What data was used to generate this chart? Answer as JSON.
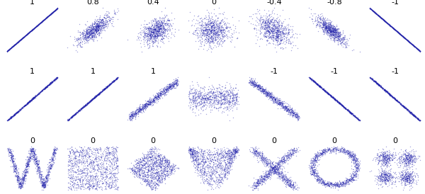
{
  "row1_correlations": [
    1,
    0.8,
    0.4,
    0,
    -0.4,
    -0.8,
    -1
  ],
  "row2_labels": [
    "1",
    "1",
    "1",
    "",
    "-1",
    "-1",
    "-1"
  ],
  "row3_labels": [
    "0",
    "0",
    "0",
    "0",
    "0",
    "0",
    "0"
  ],
  "n_points": 800,
  "dot_color": "#2020AA",
  "dot_size": 1.0,
  "dot_alpha": 0.4,
  "figsize": [
    6.0,
    2.74
  ],
  "dpi": 100
}
